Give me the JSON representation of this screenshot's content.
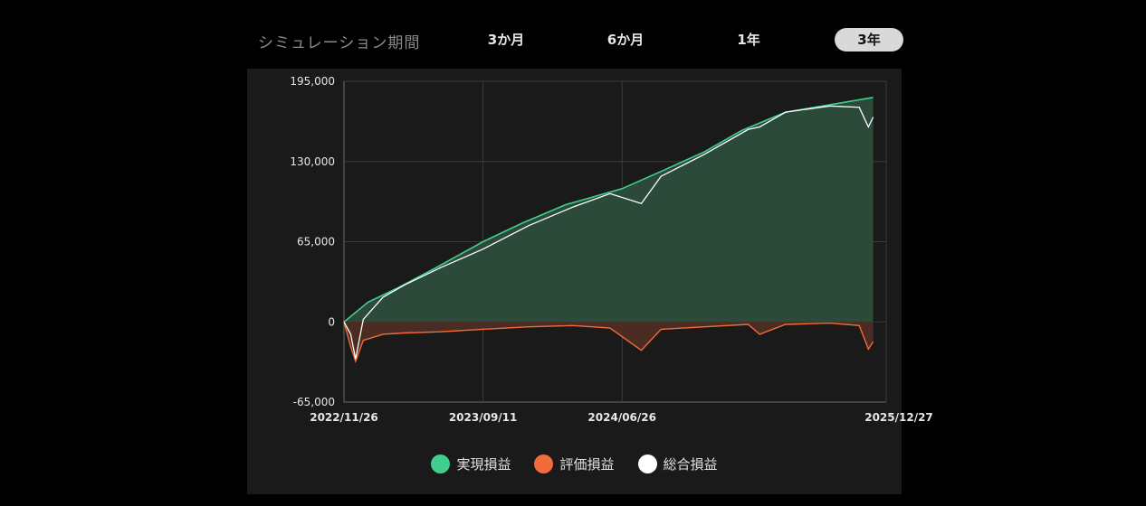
{
  "period": {
    "label": "シミュレーション期間",
    "options": [
      "3か月",
      "6か月",
      "1年",
      "3年"
    ],
    "selected": "3年"
  },
  "colors": {
    "realized": "#3ecf8e",
    "unrealized": "#f26b3a",
    "total": "#ffffff",
    "area_realized": "#2c4a3a",
    "area_unrealized": "#4a2c22",
    "panel_bg": "#1a1a1a",
    "grid": "#3a3a3a"
  },
  "chart_data": {
    "type": "area",
    "x_axis": {
      "type": "date",
      "range": [
        "2022/11/26",
        "2025/12/27"
      ],
      "tick_labels": [
        "2022/11/26",
        "2023/09/11",
        "2024/06/26",
        "2025/12/27"
      ]
    },
    "y_axis": {
      "range": [
        -65000,
        195000
      ],
      "tick_labels": [
        "195,000",
        "130,000",
        "65,000",
        "0",
        "-65,000"
      ],
      "ticks": [
        195000,
        130000,
        65000,
        0,
        -65000
      ]
    },
    "grid": true,
    "legend": "bottom-center",
    "series": [
      {
        "name": "実現損益",
        "x": [
          "2022/11/26",
          "2023/01/15",
          "2023/03/15",
          "2023/06/01",
          "2023/09/11",
          "2023/12/01",
          "2024/03/01",
          "2024/06/26",
          "2024/09/15",
          "2024/12/15",
          "2025/03/01",
          "2025/06/01",
          "2025/09/01",
          "2025/11/30"
        ],
        "values": [
          0,
          16000,
          27000,
          43000,
          65000,
          80000,
          95000,
          108000,
          122000,
          138000,
          155000,
          170000,
          176000,
          182000
        ]
      },
      {
        "name": "評価損益",
        "x": [
          "2022/11/26",
          "2022/12/10",
          "2022/12/20",
          "2023/01/05",
          "2023/02/15",
          "2023/04/01",
          "2023/06/15",
          "2023/09/11",
          "2023/12/15",
          "2024/03/15",
          "2024/06/01",
          "2024/08/05",
          "2024/09/15",
          "2024/12/15",
          "2025/03/15",
          "2025/04/08",
          "2025/06/01",
          "2025/09/01",
          "2025/11/01",
          "2025/11/20",
          "2025/11/30"
        ],
        "values": [
          0,
          -20000,
          -32000,
          -15000,
          -10000,
          -9000,
          -8000,
          -6000,
          -4000,
          -3000,
          -5000,
          -23000,
          -6000,
          -4000,
          -2000,
          -10000,
          -2000,
          -1000,
          -3000,
          -22000,
          -16000
        ]
      },
      {
        "name": "総合損益",
        "x": [
          "2022/11/26",
          "2022/12/10",
          "2022/12/20",
          "2023/01/05",
          "2023/02/15",
          "2023/04/01",
          "2023/06/15",
          "2023/09/11",
          "2023/12/15",
          "2024/03/15",
          "2024/06/01",
          "2024/08/05",
          "2024/09/15",
          "2024/12/15",
          "2025/03/15",
          "2025/04/08",
          "2025/06/01",
          "2025/09/01",
          "2025/11/01",
          "2025/11/20",
          "2025/11/30"
        ],
        "values": [
          0,
          -10000,
          -30000,
          2000,
          20000,
          30000,
          44000,
          59000,
          78000,
          93000,
          104000,
          96000,
          118000,
          136000,
          156000,
          158000,
          170000,
          175000,
          174000,
          158000,
          166000
        ]
      }
    ]
  }
}
